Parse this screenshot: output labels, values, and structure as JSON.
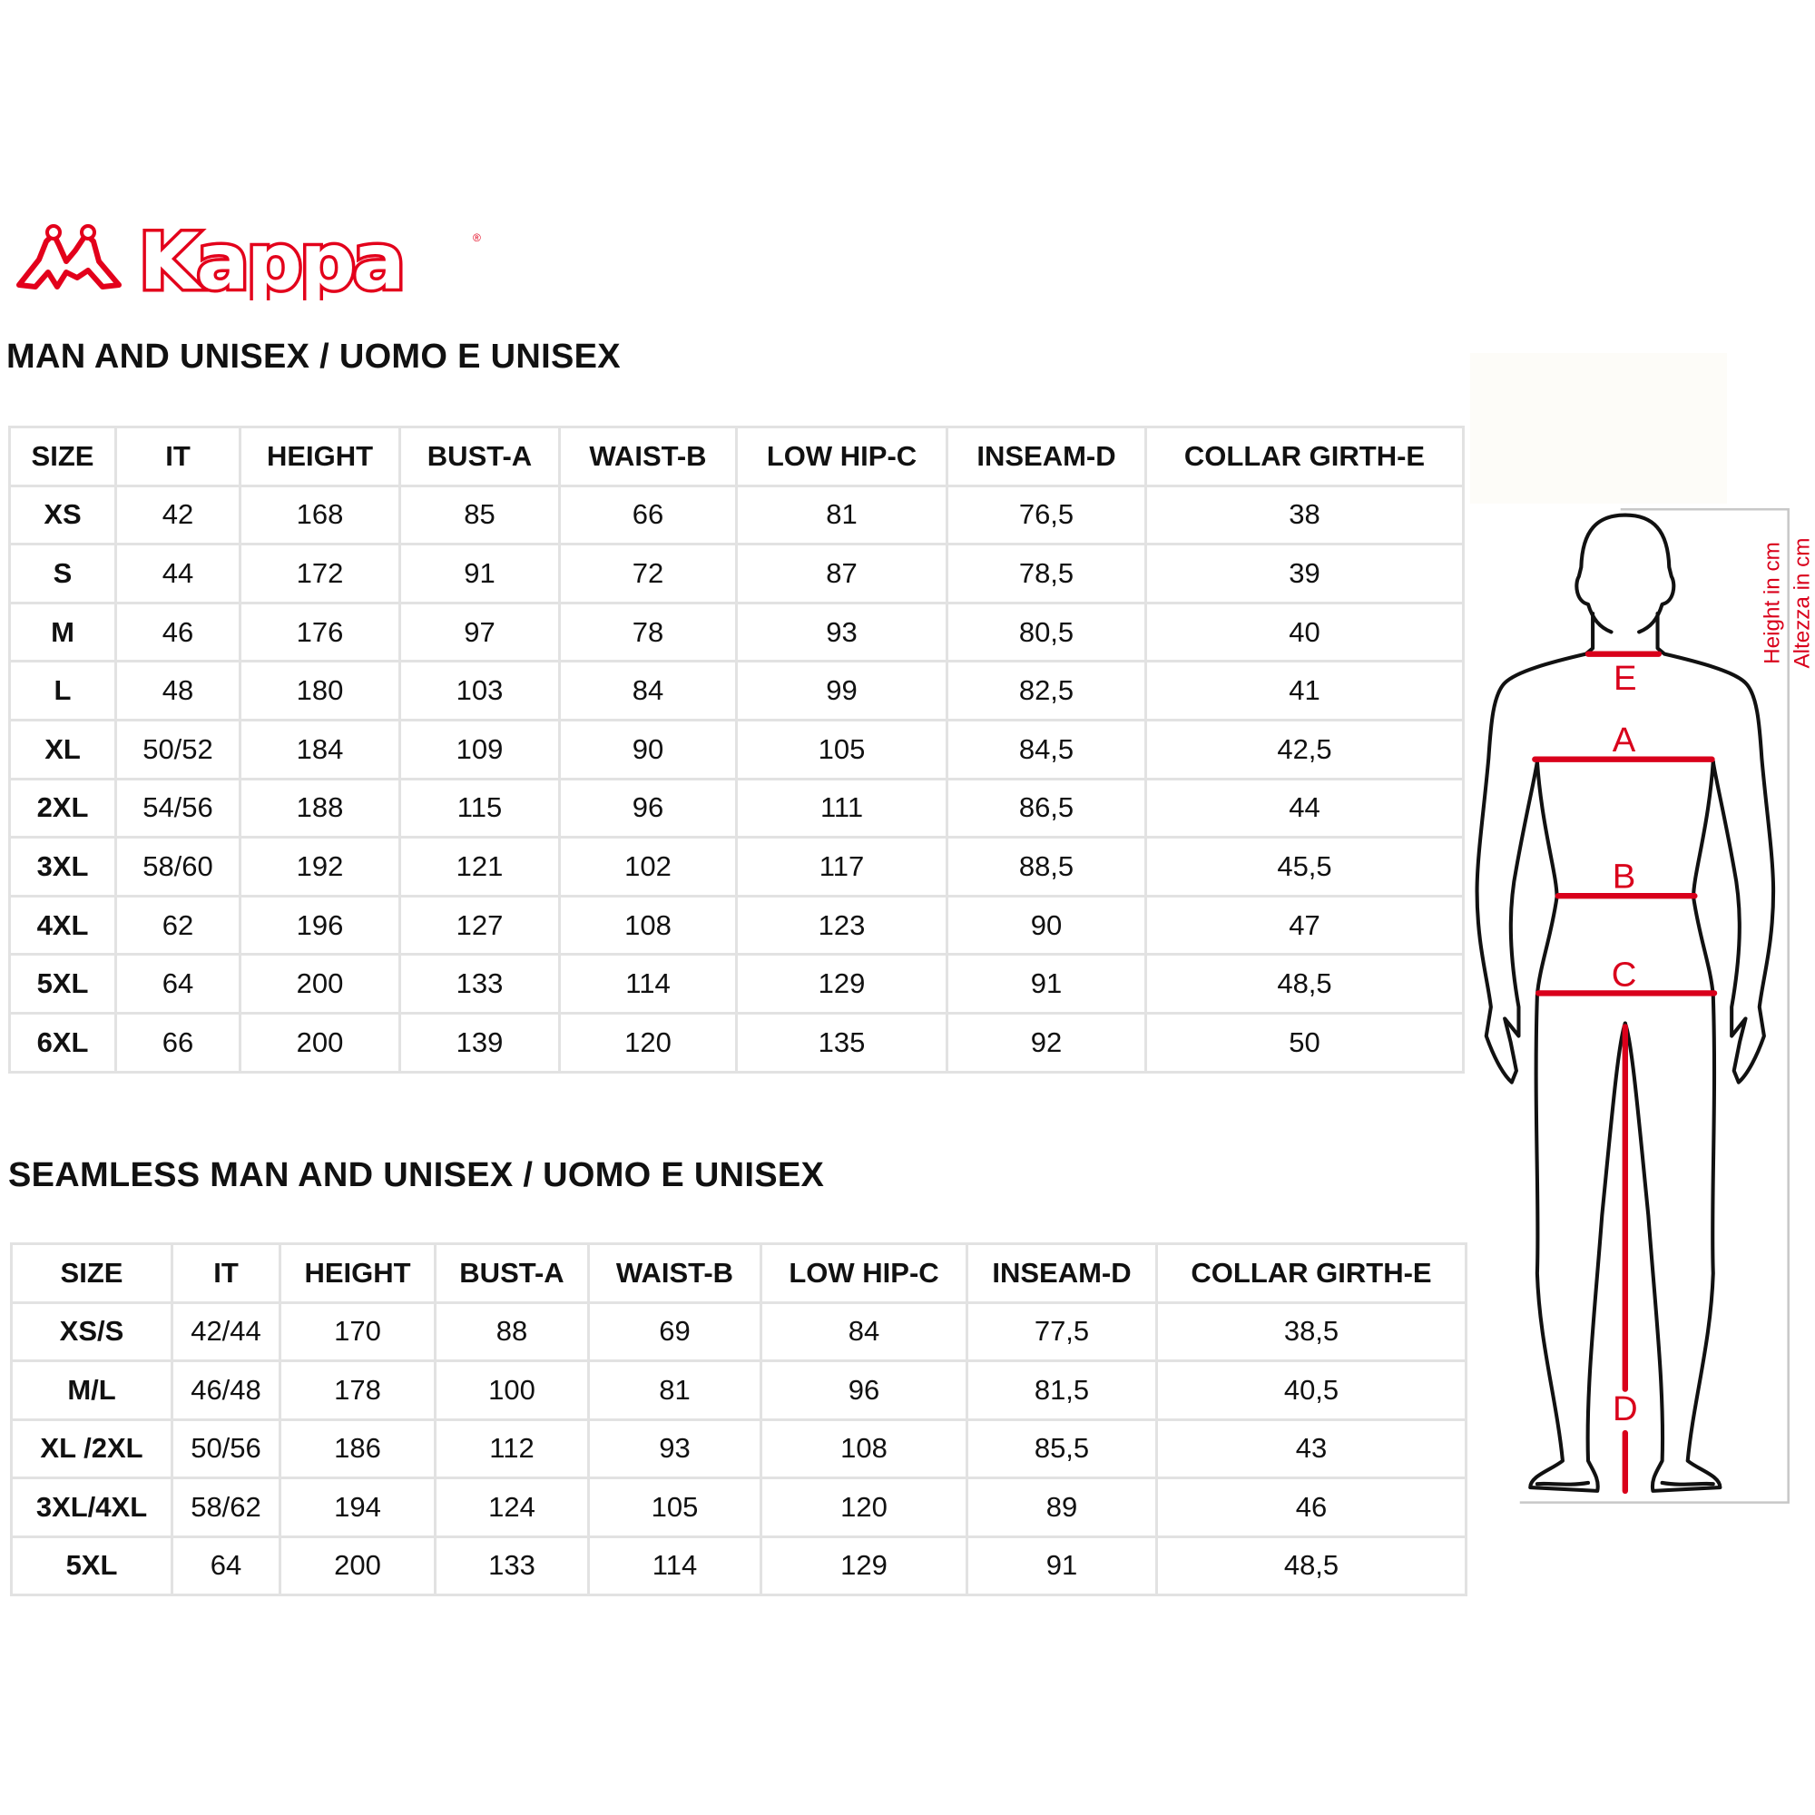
{
  "brand": {
    "logo_text": "Kappa",
    "logo_mark": "omini-logo",
    "registered": "®",
    "brand_color": "#e3001b"
  },
  "table1": {
    "title": "MAN AND UNISEX / UOMO E UNISEX",
    "headers": [
      "SIZE",
      "IT",
      "HEIGHT",
      "BUST-A",
      "WAIST-B",
      "LOW HIP-C",
      "INSEAM-D",
      "COLLAR GIRTH-E"
    ],
    "rows": [
      [
        "XS",
        "42",
        "168",
        "85",
        "66",
        "81",
        "76,5",
        "38"
      ],
      [
        "S",
        "44",
        "172",
        "91",
        "72",
        "87",
        "78,5",
        "39"
      ],
      [
        "M",
        "46",
        "176",
        "97",
        "78",
        "93",
        "80,5",
        "40"
      ],
      [
        "L",
        "48",
        "180",
        "103",
        "84",
        "99",
        "82,5",
        "41"
      ],
      [
        "XL",
        "50/52",
        "184",
        "109",
        "90",
        "105",
        "84,5",
        "42,5"
      ],
      [
        "2XL",
        "54/56",
        "188",
        "115",
        "96",
        "111",
        "86,5",
        "44"
      ],
      [
        "3XL",
        "58/60",
        "192",
        "121",
        "102",
        "117",
        "88,5",
        "45,5"
      ],
      [
        "4XL",
        "62",
        "196",
        "127",
        "108",
        "123",
        "90",
        "47"
      ],
      [
        "5XL",
        "64",
        "200",
        "133",
        "114",
        "129",
        "91",
        "48,5"
      ],
      [
        "6XL",
        "66",
        "200",
        "139",
        "120",
        "135",
        "92",
        "50"
      ]
    ]
  },
  "table2": {
    "title": "SEAMLESS MAN AND UNISEX / UOMO E UNISEX",
    "headers": [
      "SIZE",
      "IT",
      "HEIGHT",
      "BUST-A",
      "WAIST-B",
      "LOW HIP-C",
      "INSEAM-D",
      "COLLAR GIRTH-E"
    ],
    "rows": [
      [
        "XS/S",
        "42/44",
        "170",
        "88",
        "69",
        "84",
        "77,5",
        "38,5"
      ],
      [
        "M/L",
        "46/48",
        "178",
        "100",
        "81",
        "96",
        "81,5",
        "40,5"
      ],
      [
        "XL /2XL",
        "50/56",
        "186",
        "112",
        "93",
        "108",
        "85,5",
        "43"
      ],
      [
        "3XL/4XL",
        "58/62",
        "194",
        "124",
        "105",
        "120",
        "89",
        "46"
      ],
      [
        "5XL",
        "64",
        "200",
        "133",
        "114",
        "129",
        "91",
        "48,5"
      ]
    ]
  },
  "figure": {
    "labels": {
      "E": "E",
      "A": "A",
      "B": "B",
      "C": "C",
      "D": "D"
    },
    "height_en": "Height in cm",
    "height_it": "Altezza in cm",
    "accent_color": "#d9001b"
  }
}
